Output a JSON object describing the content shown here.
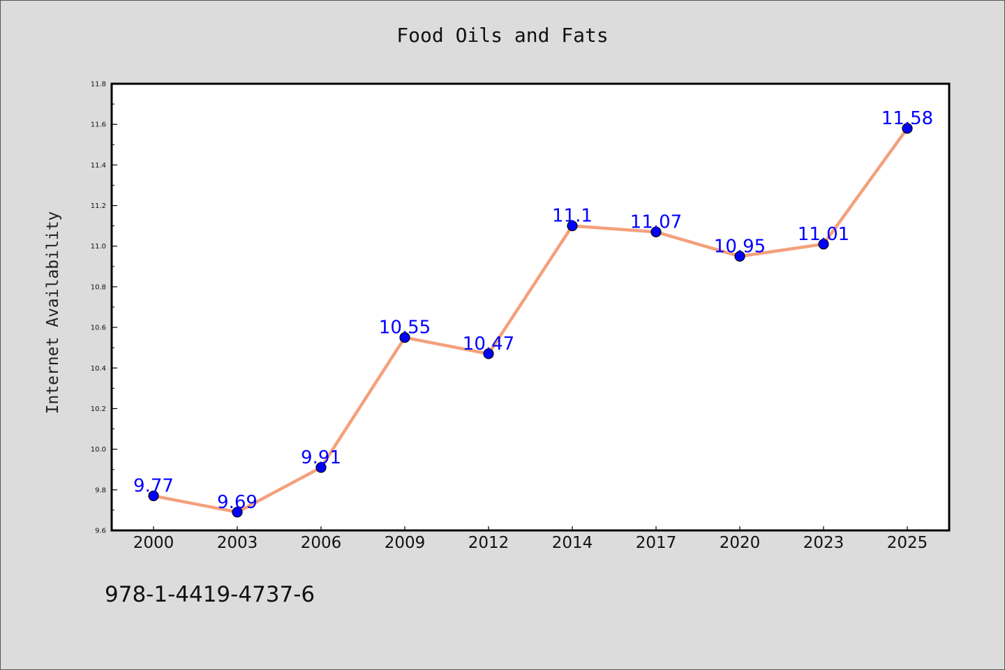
{
  "chart_data": {
    "type": "line",
    "title": "Food Oils and Fats",
    "xlabel": "",
    "ylabel": "Internet Availability",
    "categories": [
      "2000",
      "2003",
      "2006",
      "2009",
      "2012",
      "2014",
      "2017",
      "2020",
      "2023",
      "2025"
    ],
    "series": [
      {
        "values": [
          9.77,
          9.69,
          9.91,
          10.55,
          10.47,
          11.1,
          11.07,
          10.95,
          11.01,
          11.58
        ],
        "data_labels": [
          "9.77",
          "9.69",
          "9.91",
          "10.55",
          "10.47",
          "11.1",
          "11.07",
          "10.95",
          "11.01",
          "11.58"
        ],
        "line_color": "#f4a07c",
        "marker_color": "#0000ff"
      }
    ],
    "ylim": [
      9.6,
      11.8
    ],
    "y_ticks": [
      "9.6",
      "9.8",
      "10.0",
      "10.2",
      "10.4",
      "10.6",
      "10.8",
      "11.0",
      "11.2",
      "11.4",
      "11.6",
      "11.8"
    ],
    "grid": false,
    "label_color": "#0000ff"
  },
  "footer": {
    "isbn": "978-1-4419-4737-6"
  }
}
